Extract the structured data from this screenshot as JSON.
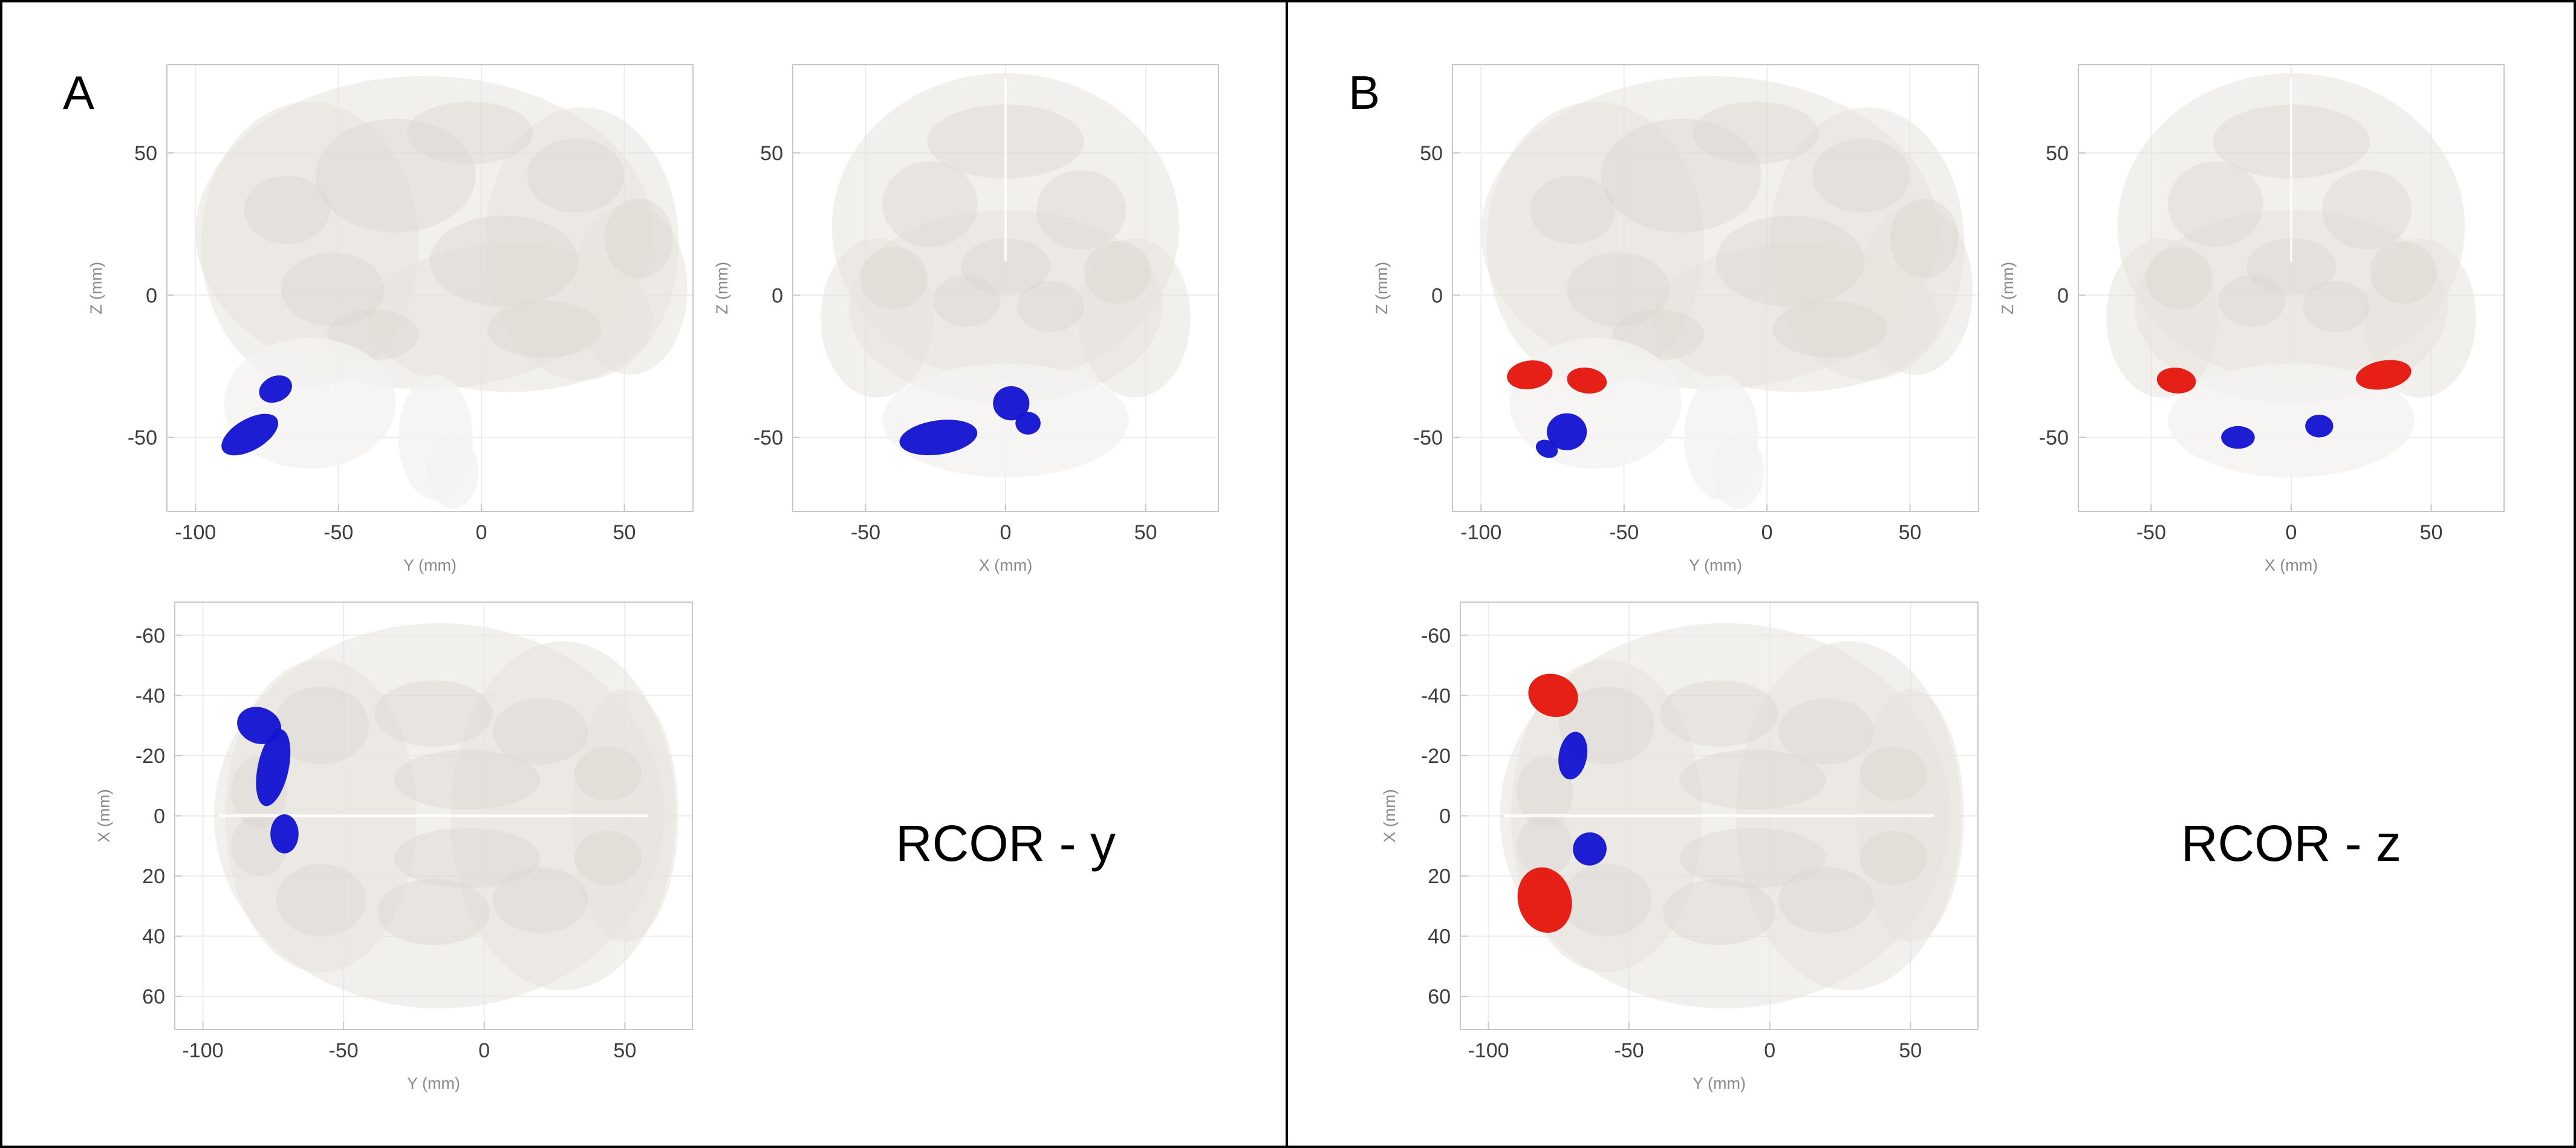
{
  "figure": {
    "background": "#ffffff",
    "border_color": "#000000"
  },
  "colors": {
    "cluster_blue": "#1414d2",
    "cluster_red": "#e5170c",
    "grid": "#ececec",
    "frame": "#c8c8c8",
    "tick_text": "#3d3d3d",
    "axis_label_text": "#8a8a8a",
    "brain_base": "#e8e4df",
    "brain_shade": "#d8d2cb",
    "brain_light": "#f4f2f0"
  },
  "panels": [
    {
      "label": "A",
      "caption": "RCOR - y"
    },
    {
      "label": "B",
      "caption": "RCOR - z"
    }
  ],
  "chart_data": [
    {
      "panel": "A",
      "type": "scatter",
      "title": "",
      "view": "sagittal",
      "grid": true,
      "xlabel": "Y (mm)",
      "ylabel": "Z (mm)",
      "xticks": [
        -100,
        -50,
        0,
        50
      ],
      "yticks": [
        -50,
        0,
        50
      ],
      "xlim": [
        -110,
        74
      ],
      "ylim": [
        -76,
        81
      ],
      "y_reversed": false,
      "clusters": [
        {
          "color": "blue",
          "center_mm": [
            -72,
            -33
          ],
          "radius_mm": [
            6,
            4.5
          ],
          "angle": -25
        },
        {
          "color": "blue",
          "center_mm": [
            -81,
            -49
          ],
          "radius_mm": [
            11,
            5.5
          ],
          "angle": -30
        }
      ]
    },
    {
      "panel": "A",
      "type": "scatter",
      "title": "",
      "view": "coronal",
      "grid": true,
      "xlabel": "X (mm)",
      "ylabel": "Z (mm)",
      "xticks": [
        -50,
        0,
        50
      ],
      "yticks": [
        -50,
        0,
        50
      ],
      "xlim": [
        -76,
        76
      ],
      "ylim": [
        -76,
        81
      ],
      "y_reversed": false,
      "clusters": [
        {
          "color": "blue",
          "center_mm": [
            -24,
            -50
          ],
          "radius_mm": [
            14,
            6
          ],
          "angle": -8
        },
        {
          "color": "blue",
          "center_mm": [
            2,
            -38
          ],
          "radius_mm": [
            6.5,
            6
          ],
          "angle": 0
        },
        {
          "color": "blue",
          "center_mm": [
            8,
            -45
          ],
          "radius_mm": [
            4.5,
            4
          ],
          "angle": 0
        }
      ]
    },
    {
      "panel": "A",
      "type": "scatter",
      "title": "",
      "view": "axial",
      "grid": true,
      "xlabel": "Y (mm)",
      "ylabel": "X (mm)",
      "xticks": [
        -100,
        -50,
        0,
        50
      ],
      "yticks": [
        -60,
        -40,
        -20,
        0,
        20,
        40,
        60
      ],
      "xlim": [
        -110,
        74
      ],
      "ylim": [
        -71,
        71
      ],
      "y_reversed": true,
      "clusters": [
        {
          "color": "blue",
          "center_mm": [
            -80,
            -30
          ],
          "radius_mm": [
            8,
            6
          ],
          "angle": 20
        },
        {
          "color": "blue",
          "center_mm": [
            -75,
            -16
          ],
          "radius_mm": [
            5.5,
            13
          ],
          "angle": 12
        },
        {
          "color": "blue",
          "center_mm": [
            -71,
            6
          ],
          "radius_mm": [
            5,
            6.5
          ],
          "angle": 0
        }
      ]
    },
    {
      "panel": "B",
      "type": "scatter",
      "title": "",
      "view": "sagittal",
      "grid": true,
      "xlabel": "Y (mm)",
      "ylabel": "Z (mm)",
      "xticks": [
        -100,
        -50,
        0,
        50
      ],
      "yticks": [
        -50,
        0,
        50
      ],
      "xlim": [
        -110,
        74
      ],
      "ylim": [
        -76,
        81
      ],
      "y_reversed": false,
      "clusters": [
        {
          "color": "red",
          "center_mm": [
            -83,
            -28
          ],
          "radius_mm": [
            8,
            5
          ],
          "angle": -8
        },
        {
          "color": "red",
          "center_mm": [
            -63,
            -30
          ],
          "radius_mm": [
            7,
            4.5
          ],
          "angle": 8
        },
        {
          "color": "blue",
          "center_mm": [
            -70,
            -48
          ],
          "radius_mm": [
            7,
            6.5
          ],
          "angle": 0
        },
        {
          "color": "blue",
          "center_mm": [
            -77,
            -54
          ],
          "radius_mm": [
            4,
            3
          ],
          "angle": 25
        }
      ]
    },
    {
      "panel": "B",
      "type": "scatter",
      "title": "",
      "view": "coronal",
      "grid": true,
      "xlabel": "X (mm)",
      "ylabel": "Z (mm)",
      "xticks": [
        -50,
        0,
        50
      ],
      "yticks": [
        -50,
        0,
        50
      ],
      "xlim": [
        -76,
        76
      ],
      "ylim": [
        -76,
        81
      ],
      "y_reversed": false,
      "clusters": [
        {
          "color": "red",
          "center_mm": [
            -41,
            -30
          ],
          "radius_mm": [
            7,
            4.5
          ],
          "angle": 6
        },
        {
          "color": "red",
          "center_mm": [
            33,
            -28
          ],
          "radius_mm": [
            10,
            5
          ],
          "angle": -10
        },
        {
          "color": "blue",
          "center_mm": [
            -19,
            -50
          ],
          "radius_mm": [
            6,
            4
          ],
          "angle": 0
        },
        {
          "color": "blue",
          "center_mm": [
            10,
            -46
          ],
          "radius_mm": [
            5,
            4
          ],
          "angle": 0
        }
      ]
    },
    {
      "panel": "B",
      "type": "scatter",
      "title": "",
      "view": "axial",
      "grid": true,
      "xlabel": "Y (mm)",
      "ylabel": "X (mm)",
      "xticks": [
        -100,
        -50,
        0,
        50
      ],
      "yticks": [
        -60,
        -40,
        -20,
        0,
        20,
        40,
        60
      ],
      "xlim": [
        -110,
        74
      ],
      "ylim": [
        -71,
        71
      ],
      "y_reversed": true,
      "clusters": [
        {
          "color": "red",
          "center_mm": [
            -77,
            -40
          ],
          "radius_mm": [
            9,
            7
          ],
          "angle": 20
        },
        {
          "color": "blue",
          "center_mm": [
            -70,
            -20
          ],
          "radius_mm": [
            5,
            8
          ],
          "angle": 10
        },
        {
          "color": "blue",
          "center_mm": [
            -64,
            11
          ],
          "radius_mm": [
            6,
            5.5
          ],
          "angle": -20
        },
        {
          "color": "red",
          "center_mm": [
            -80,
            28
          ],
          "radius_mm": [
            9.5,
            11
          ],
          "angle": -15
        }
      ]
    }
  ]
}
